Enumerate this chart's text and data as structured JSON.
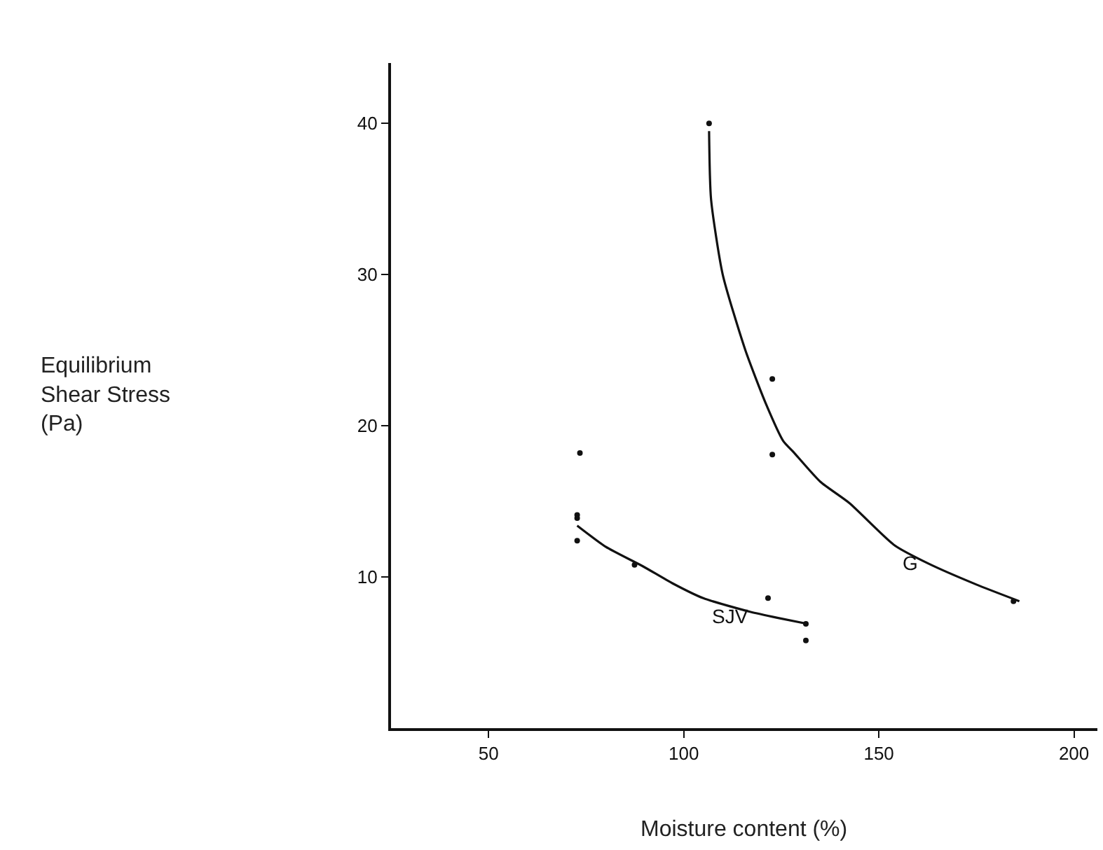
{
  "chart_data": {
    "type": "scatter",
    "xlabel": "Moisture content (%)",
    "xlim": [
      25,
      206
    ],
    "ylim": [
      0,
      44
    ],
    "xticks": [
      50,
      100,
      150,
      200
    ],
    "yticks": [
      10,
      20,
      30,
      40
    ],
    "series": [
      {
        "color": "#111111",
        "marker": "circle",
        "x": [
          106.5,
          122.7,
          122.7,
          184.5
        ],
        "values": [
          40,
          23.1,
          18.1,
          8.4
        ]
      },
      {
        "color": "#111111",
        "marker": "circle",
        "x": [
          72.7,
          72.7,
          72.7,
          73.4,
          87.4,
          121.6,
          131.3,
          131.3
        ],
        "values": [
          14.1,
          13.9,
          12.4,
          18.2,
          10.8,
          8.6,
          6.9,
          5.8
        ]
      },
      {
        "type": "line",
        "marker": "none",
        "color": "#111111",
        "x": [
          106.5,
          107,
          110,
          115.8,
          121,
          125.5,
          128,
          135,
          142.4,
          154,
          162.6,
          175,
          186
        ],
        "values": [
          39.5,
          35,
          30,
          25,
          21.5,
          19,
          18.3,
          16.3,
          14.9,
          12.1,
          10.9,
          9.5,
          8.4
        ]
      },
      {
        "type": "line",
        "marker": "none",
        "color": "#111111",
        "x": [
          72.7,
          80,
          89.6,
          97,
          105,
          117,
          124,
          131.7
        ],
        "values": [
          13.4,
          12,
          10.7,
          9.6,
          8.6,
          7.7,
          7.3,
          6.9
        ]
      }
    ],
    "annotations": [
      "Equilibrium\nShear Stress\n(Pa)",
      {
        "text": "G",
        "x": 154,
        "y": 12.1
      },
      {
        "text": "SJV",
        "x": 105,
        "y": 8.6
      }
    ]
  }
}
